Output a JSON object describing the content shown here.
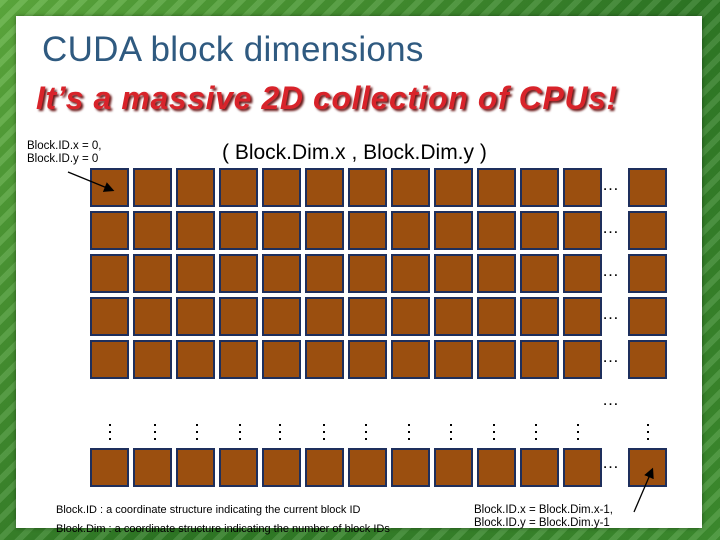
{
  "slide": {
    "title": "CUDA block dimensions",
    "subtitle": "It’s a massive 2D collection of CPUs!",
    "top_left_label": [
      "Block.ID.x = 0,",
      "Block.ID.y = 0"
    ],
    "dims_label": "( Block.Dim.x , Block.Dim.y )",
    "ellipsis": "…",
    "bottom_right_label": [
      "Block.ID.x = Block.Dim.x-1,",
      "Block.ID.y = Block.Dim.y-1"
    ],
    "footnotes": [
      "Block.ID : a coordinate structure indicating the current block ID",
      "Block.Dim : a coordinate structure indicating the number of block IDs"
    ]
  },
  "colors": {
    "cell_fill": "#9b4f0f",
    "cell_border": "#1e2f5c",
    "title": "#2f5a80",
    "subtitle": "#d8232a"
  }
}
